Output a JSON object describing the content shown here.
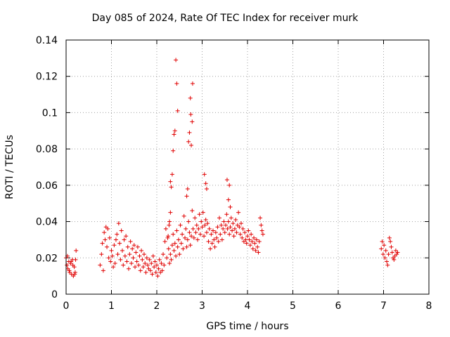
{
  "chart_data": {
    "type": "scatter",
    "title": "Day 085 of 2024, Rate Of TEC Index for receiver murk",
    "xlabel": "GPS time / hours",
    "ylabel": "ROTI / TECUs",
    "xlim": [
      0,
      8
    ],
    "ylim": [
      0,
      0.14
    ],
    "x_ticks": [
      "0",
      "1",
      "2",
      "3",
      "4",
      "5",
      "6",
      "7",
      "8"
    ],
    "y_ticks": [
      "0",
      "0.02",
      "0.04",
      "0.06",
      "0.08",
      "0.1",
      "0.12",
      "0.14"
    ],
    "grid": true,
    "marker": "+",
    "color": "#e00000",
    "series": [
      {
        "x": [
          0.0,
          0.02,
          0.04,
          0.06,
          0.08,
          0.1,
          0.12,
          0.14,
          0.16,
          0.18,
          0.2,
          0.22,
          0.03,
          0.07,
          0.11,
          0.15,
          0.19,
          0.21,
          0.75,
          0.78,
          0.8,
          0.82,
          0.84,
          0.86,
          0.88,
          0.9,
          0.92,
          0.94,
          0.96,
          0.98,
          1.0,
          1.02,
          1.04,
          1.06,
          1.08,
          1.1,
          1.12,
          1.14,
          1.16,
          1.18,
          1.2,
          1.22,
          1.24,
          1.26,
          1.28,
          1.3,
          1.32,
          1.34,
          1.36,
          1.38,
          1.4,
          1.42,
          1.44,
          1.46,
          1.48,
          1.5,
          1.52,
          1.54,
          1.56,
          1.58,
          1.6,
          1.62,
          1.64,
          1.66,
          1.68,
          1.7,
          1.72,
          1.74,
          1.76,
          1.78,
          1.8,
          1.82,
          1.84,
          1.86,
          1.88,
          1.9,
          1.92,
          1.94,
          1.96,
          1.98,
          2.0,
          2.02,
          2.04,
          2.06,
          2.08,
          2.1,
          2.12,
          2.14,
          2.16,
          2.18,
          2.2,
          2.22,
          2.24,
          2.26,
          2.28,
          2.3,
          2.32,
          2.34,
          2.36,
          2.38,
          2.4,
          2.42,
          2.44,
          2.46,
          2.48,
          2.5,
          2.52,
          2.54,
          2.56,
          2.58,
          2.6,
          2.62,
          2.64,
          2.66,
          2.68,
          2.7,
          2.72,
          2.74,
          2.76,
          2.78,
          2.8,
          2.82,
          2.84,
          2.86,
          2.88,
          2.9,
          2.92,
          2.94,
          2.96,
          2.98,
          3.0,
          3.02,
          3.04,
          3.06,
          3.08,
          3.1,
          3.12,
          3.14,
          3.16,
          3.18,
          3.2,
          3.22,
          3.24,
          3.26,
          3.28,
          3.3,
          3.32,
          3.34,
          3.36,
          3.38,
          3.4,
          3.42,
          3.44,
          3.46,
          3.48,
          3.5,
          3.52,
          3.54,
          3.56,
          3.58,
          3.6,
          3.62,
          3.64,
          3.66,
          3.68,
          3.7,
          3.72,
          3.74,
          3.76,
          3.78,
          3.8,
          3.82,
          3.84,
          3.86,
          3.88,
          3.9,
          3.92,
          3.94,
          3.96,
          3.98,
          4.0,
          4.02,
          4.04,
          4.06,
          4.08,
          4.1,
          4.12,
          4.14,
          4.16,
          4.18,
          4.2,
          4.22,
          4.24,
          4.26,
          4.28,
          4.3,
          4.32,
          4.34,
          2.4,
          2.42,
          2.44,
          2.46,
          2.38,
          2.36,
          2.34,
          2.32,
          2.3,
          2.75,
          2.76,
          2.78,
          2.79,
          2.72,
          2.7,
          2.68,
          2.66,
          2.74,
          2.25,
          2.27,
          2.28,
          2.3,
          3.05,
          3.08,
          3.1,
          3.55,
          3.58,
          3.6,
          3.62,
          6.95,
          6.97,
          6.99,
          7.01,
          7.03,
          7.05,
          7.07,
          7.09,
          7.11,
          7.13,
          7.15,
          7.17,
          7.19,
          7.21,
          7.23,
          7.25,
          7.27,
          7.29,
          7.31
        ],
        "y": [
          0.02,
          0.016,
          0.014,
          0.018,
          0.012,
          0.017,
          0.011,
          0.019,
          0.01,
          0.015,
          0.012,
          0.024,
          0.021,
          0.013,
          0.018,
          0.016,
          0.011,
          0.019,
          0.016,
          0.022,
          0.028,
          0.013,
          0.034,
          0.03,
          0.037,
          0.026,
          0.036,
          0.02,
          0.031,
          0.018,
          0.024,
          0.021,
          0.015,
          0.027,
          0.017,
          0.03,
          0.033,
          0.022,
          0.039,
          0.028,
          0.019,
          0.035,
          0.024,
          0.016,
          0.03,
          0.021,
          0.032,
          0.018,
          0.026,
          0.014,
          0.022,
          0.029,
          0.017,
          0.025,
          0.02,
          0.027,
          0.015,
          0.023,
          0.018,
          0.026,
          0.016,
          0.021,
          0.013,
          0.024,
          0.019,
          0.015,
          0.022,
          0.017,
          0.012,
          0.02,
          0.016,
          0.014,
          0.019,
          0.013,
          0.017,
          0.011,
          0.021,
          0.015,
          0.018,
          0.012,
          0.016,
          0.01,
          0.014,
          0.019,
          0.012,
          0.017,
          0.013,
          0.022,
          0.016,
          0.029,
          0.036,
          0.02,
          0.031,
          0.025,
          0.017,
          0.022,
          0.019,
          0.027,
          0.033,
          0.024,
          0.028,
          0.021,
          0.035,
          0.026,
          0.03,
          0.022,
          0.038,
          0.028,
          0.033,
          0.025,
          0.043,
          0.031,
          0.036,
          0.026,
          0.03,
          0.04,
          0.034,
          0.027,
          0.032,
          0.046,
          0.036,
          0.031,
          0.042,
          0.034,
          0.038,
          0.03,
          0.036,
          0.044,
          0.033,
          0.04,
          0.037,
          0.045,
          0.032,
          0.038,
          0.041,
          0.034,
          0.039,
          0.029,
          0.036,
          0.025,
          0.033,
          0.028,
          0.035,
          0.03,
          0.026,
          0.034,
          0.031,
          0.037,
          0.029,
          0.042,
          0.033,
          0.038,
          0.03,
          0.036,
          0.04,
          0.034,
          0.038,
          0.044,
          0.036,
          0.04,
          0.033,
          0.037,
          0.042,
          0.035,
          0.039,
          0.032,
          0.036,
          0.041,
          0.034,
          0.038,
          0.045,
          0.037,
          0.033,
          0.039,
          0.031,
          0.036,
          0.029,
          0.034,
          0.03,
          0.028,
          0.032,
          0.035,
          0.03,
          0.027,
          0.033,
          0.029,
          0.025,
          0.031,
          0.028,
          0.024,
          0.03,
          0.026,
          0.023,
          0.029,
          0.042,
          0.038,
          0.035,
          0.033,
          0.09,
          0.129,
          0.116,
          0.101,
          0.088,
          0.079,
          0.066,
          0.059,
          0.062,
          0.099,
          0.082,
          0.095,
          0.116,
          0.089,
          0.084,
          0.058,
          0.054,
          0.108,
          0.032,
          0.038,
          0.04,
          0.045,
          0.066,
          0.061,
          0.058,
          0.063,
          0.052,
          0.06,
          0.048,
          0.025,
          0.029,
          0.022,
          0.027,
          0.02,
          0.024,
          0.018,
          0.016,
          0.022,
          0.031,
          0.029,
          0.026,
          0.023,
          0.02,
          0.019,
          0.021,
          0.024,
          0.022,
          0.023
        ]
      }
    ]
  }
}
